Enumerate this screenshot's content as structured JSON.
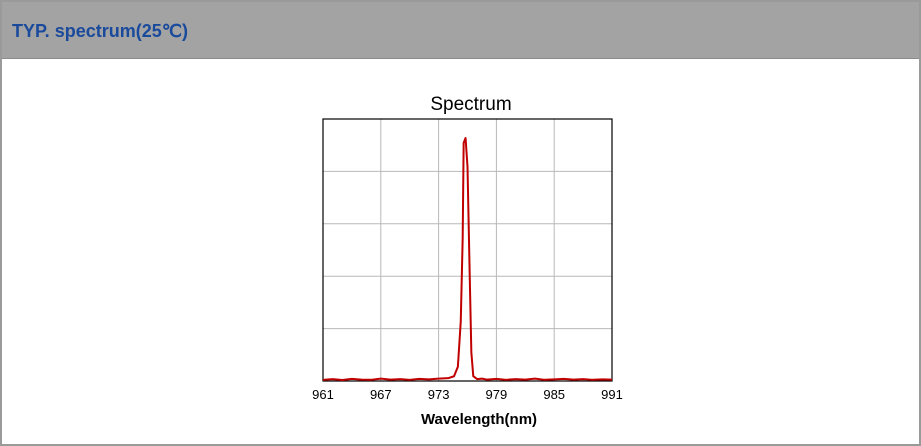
{
  "header": {
    "title": "TYP. spectrum(25℃)"
  },
  "chart_data": {
    "type": "line",
    "title": "Spectrum",
    "xlabel": "Wavelength(nm)",
    "ylabel": "",
    "xlim": [
      961,
      991
    ],
    "ylim": [
      0,
      1.1
    ],
    "x_ticks": [
      "961",
      "967",
      "973",
      "979",
      "985",
      "991"
    ],
    "y_gridlines": 5,
    "grid": true,
    "color": "#c00000",
    "series": [
      {
        "x": [
          961,
          962,
          963,
          964,
          965,
          966,
          967,
          968,
          969,
          970,
          971,
          972,
          973,
          974,
          974.6,
          975.0,
          975.3,
          975.5,
          975.6,
          975.8,
          976.0,
          976.2,
          976.4,
          976.6,
          977.0,
          977.5,
          978,
          979,
          980,
          981,
          982,
          983,
          984,
          985,
          986,
          987,
          988,
          989,
          990,
          991
        ],
        "y": [
          0.005,
          0.008,
          0.004,
          0.009,
          0.006,
          0.005,
          0.01,
          0.006,
          0.008,
          0.005,
          0.009,
          0.007,
          0.01,
          0.012,
          0.02,
          0.06,
          0.25,
          0.6,
          1.0,
          1.02,
          0.9,
          0.5,
          0.12,
          0.02,
          0.008,
          0.01,
          0.006,
          0.009,
          0.005,
          0.008,
          0.006,
          0.01,
          0.005,
          0.007,
          0.009,
          0.006,
          0.008,
          0.005,
          0.007,
          0.006
        ]
      }
    ]
  }
}
